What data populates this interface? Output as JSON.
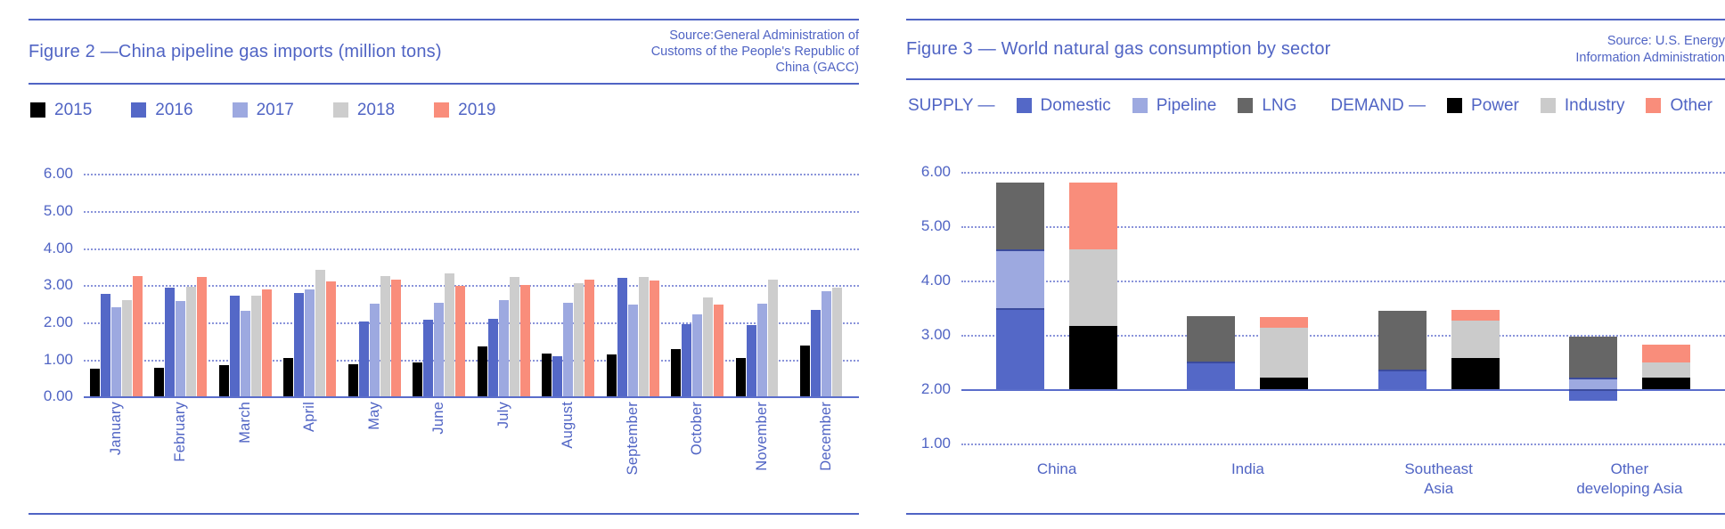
{
  "figure2": {
    "title": "Figure 2 —China pipeline gas imports (million tons)",
    "source": "Source:General Administration of\nCustoms of the People's Republic of\nChina (GACC)"
  },
  "figure3": {
    "title": "Figure 3 — World natural gas consumption by sector",
    "source": "Source: U.S. Energy\nInformation Administration",
    "legend": {
      "supply_label": "SUPPLY —",
      "demand_label": "DEMAND —"
    }
  },
  "colors": {
    "text_blue": "#5064c4",
    "grid_blue": "#8a94da",
    "series": {
      "2015": "#000000",
      "2016": "#5468c7",
      "2017": "#9da9e0",
      "2018": "#cdcdcd",
      "2019": "#f98d7b",
      "Domestic": "#5468c7",
      "Pipeline": "#9da9e0",
      "LNG": "#666666",
      "Power": "#000000",
      "Industry": "#cbcbcb",
      "Other": "#f98d7b"
    }
  },
  "chart_data": [
    {
      "type": "bar",
      "title": "China pipeline gas imports (million tons)",
      "ylabel": "million tons",
      "ylim": [
        0,
        6
      ],
      "yticks": [
        "6.00",
        "5.00",
        "4.00",
        "3.00",
        "2.00",
        "1.00",
        "0.00"
      ],
      "grid": "dotted horizontal",
      "legend_position": "top",
      "categories": [
        "January",
        "February",
        "March",
        "April",
        "May",
        "June",
        "July",
        "August",
        "September",
        "October",
        "November",
        "December"
      ],
      "series": [
        {
          "name": "2015",
          "values": [
            0.76,
            0.77,
            0.84,
            1.05,
            0.87,
            0.93,
            1.35,
            1.15,
            1.13,
            1.27,
            1.04,
            1.37
          ]
        },
        {
          "name": "2016",
          "values": [
            2.78,
            2.93,
            2.73,
            2.8,
            2.02,
            2.07,
            2.1,
            1.09,
            3.21,
            1.96,
            1.94,
            2.33
          ]
        },
        {
          "name": "2017",
          "values": [
            2.42,
            2.57,
            2.32,
            2.9,
            2.5,
            2.53,
            2.6,
            2.54,
            2.47,
            2.21,
            2.5,
            2.84
          ]
        },
        {
          "name": "2018",
          "values": [
            2.61,
            2.96,
            2.73,
            3.42,
            3.25,
            3.32,
            3.23,
            3.06,
            3.23,
            2.67,
            3.16,
            2.93
          ]
        },
        {
          "name": "2019",
          "values": [
            3.26,
            3.22,
            2.88,
            3.1,
            3.15,
            2.98,
            3.0,
            3.15,
            3.13,
            2.48,
            null,
            null
          ]
        }
      ]
    },
    {
      "type": "stacked-bar",
      "title": "World natural gas consumption by sector",
      "ylim": [
        1,
        6
      ],
      "baseline": 2,
      "yticks": [
        "6.00",
        "5.00",
        "4.00",
        "3.00",
        "2.00",
        "1.00"
      ],
      "grid": "dotted horizontal",
      "legend_position": "top",
      "supply_series": [
        "Domestic",
        "Pipeline",
        "LNG"
      ],
      "demand_series": [
        "Power",
        "Industry",
        "Other"
      ],
      "categories": [
        "China",
        "India",
        "Southeast\nAsia",
        "Other\ndeveloping Asia"
      ],
      "groups": [
        {
          "category": "China",
          "supply": [
            {
              "name": "Domestic",
              "from": 2.0,
              "to": 3.48
            },
            {
              "name": "Pipeline",
              "from": 3.48,
              "to": 4.57
            },
            {
              "name": "LNG",
              "from": 4.57,
              "to": 5.8
            }
          ],
          "demand": [
            {
              "name": "Power",
              "from": 2.0,
              "to": 3.15
            },
            {
              "name": "Industry",
              "from": 3.15,
              "to": 4.56
            },
            {
              "name": "Other",
              "from": 4.56,
              "to": 5.8
            }
          ]
        },
        {
          "category": "India",
          "supply": [
            {
              "name": "Domestic",
              "from": 2.0,
              "to": 2.5
            },
            {
              "name": "LNG",
              "from": 2.5,
              "to": 3.33
            }
          ],
          "demand": [
            {
              "name": "Power",
              "from": 2.0,
              "to": 2.2
            },
            {
              "name": "Industry",
              "from": 2.2,
              "to": 3.13
            },
            {
              "name": "Other",
              "from": 3.13,
              "to": 3.32
            }
          ]
        },
        {
          "category": "Southeast\nAsia",
          "supply": [
            {
              "name": "Domestic",
              "from": 2.0,
              "to": 2.36
            },
            {
              "name": "LNG",
              "from": 2.36,
              "to": 3.43
            }
          ],
          "demand": [
            {
              "name": "Power",
              "from": 2.0,
              "to": 2.56
            },
            {
              "name": "Industry",
              "from": 2.56,
              "to": 3.26
            },
            {
              "name": "Other",
              "from": 3.26,
              "to": 3.46
            }
          ]
        },
        {
          "category": "Other\ndeveloping Asia",
          "supply": [
            {
              "name": "Domestic",
              "from": 1.78,
              "to": 2.0
            },
            {
              "name": "Pipeline",
              "from": 2.0,
              "to": 2.2
            },
            {
              "name": "LNG",
              "from": 2.2,
              "to": 2.96
            }
          ],
          "demand": [
            {
              "name": "Power",
              "from": 2.0,
              "to": 2.2
            },
            {
              "name": "Industry",
              "from": 2.2,
              "to": 2.49
            },
            {
              "name": "Other",
              "from": 2.49,
              "to": 2.81
            }
          ]
        }
      ]
    }
  ]
}
